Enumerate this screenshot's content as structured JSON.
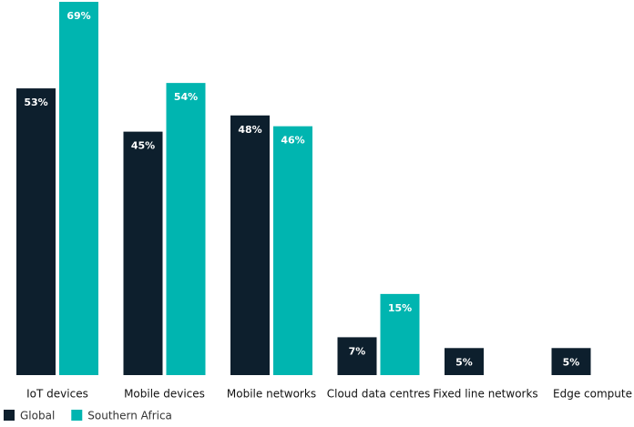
{
  "chart_data": {
    "type": "bar",
    "categories": [
      "IoT devices",
      "Mobile devices",
      "Mobile networks",
      "Cloud data centres",
      "Fixed line networks",
      "Edge compute"
    ],
    "series": [
      {
        "name": "Global",
        "color": "#0d1f2d",
        "values": [
          53,
          45,
          48,
          7,
          5,
          5
        ],
        "value_labels": [
          "53%",
          "45%",
          "48%",
          "7%",
          "5%",
          "5%"
        ]
      },
      {
        "name": "Southern Africa",
        "color": "#00b5b0",
        "values": [
          69,
          54,
          46,
          15,
          0,
          0
        ],
        "value_labels": [
          "69%",
          "54%",
          "46%",
          "15%",
          null,
          null
        ]
      }
    ],
    "ylim": [
      0,
      69
    ]
  }
}
